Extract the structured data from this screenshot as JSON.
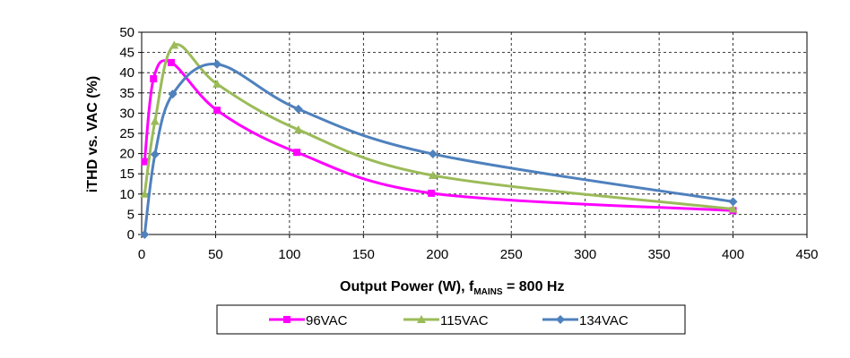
{
  "chart_data": {
    "type": "line",
    "xlabel_main": "Output Power (W), f",
    "xlabel_sub": "MAINS",
    "xlabel_tail": " = 800 Hz",
    "ylabel": "iTHD vs. VAC (%)",
    "xlim": [
      0,
      450
    ],
    "ylim": [
      0,
      50
    ],
    "xticks": [
      0,
      50,
      100,
      150,
      200,
      250,
      300,
      350,
      400,
      450
    ],
    "yticks": [
      0,
      5,
      10,
      15,
      20,
      25,
      30,
      35,
      40,
      45,
      50
    ],
    "grid": true,
    "legend_position": "bottom",
    "series": [
      {
        "name": "96VAC",
        "color": "#ff00ff",
        "marker": "square",
        "x": [
          2,
          8,
          20,
          51,
          105,
          196,
          400
        ],
        "y": [
          18,
          38.5,
          42.5,
          30.7,
          20.3,
          10.2,
          5.9
        ]
      },
      {
        "name": "115VAC",
        "color": "#9bbb59",
        "marker": "triangle",
        "x": [
          2,
          9,
          22,
          51,
          106,
          197,
          400
        ],
        "y": [
          10,
          28,
          46.8,
          37.2,
          25.9,
          14.6,
          6.3
        ]
      },
      {
        "name": "134VAC",
        "color": "#4f81bd",
        "marker": "diamond",
        "x": [
          2,
          9,
          21,
          51,
          106,
          197,
          400
        ],
        "y": [
          0,
          19.8,
          34.7,
          42.1,
          31,
          19.9,
          8.1
        ]
      }
    ]
  }
}
